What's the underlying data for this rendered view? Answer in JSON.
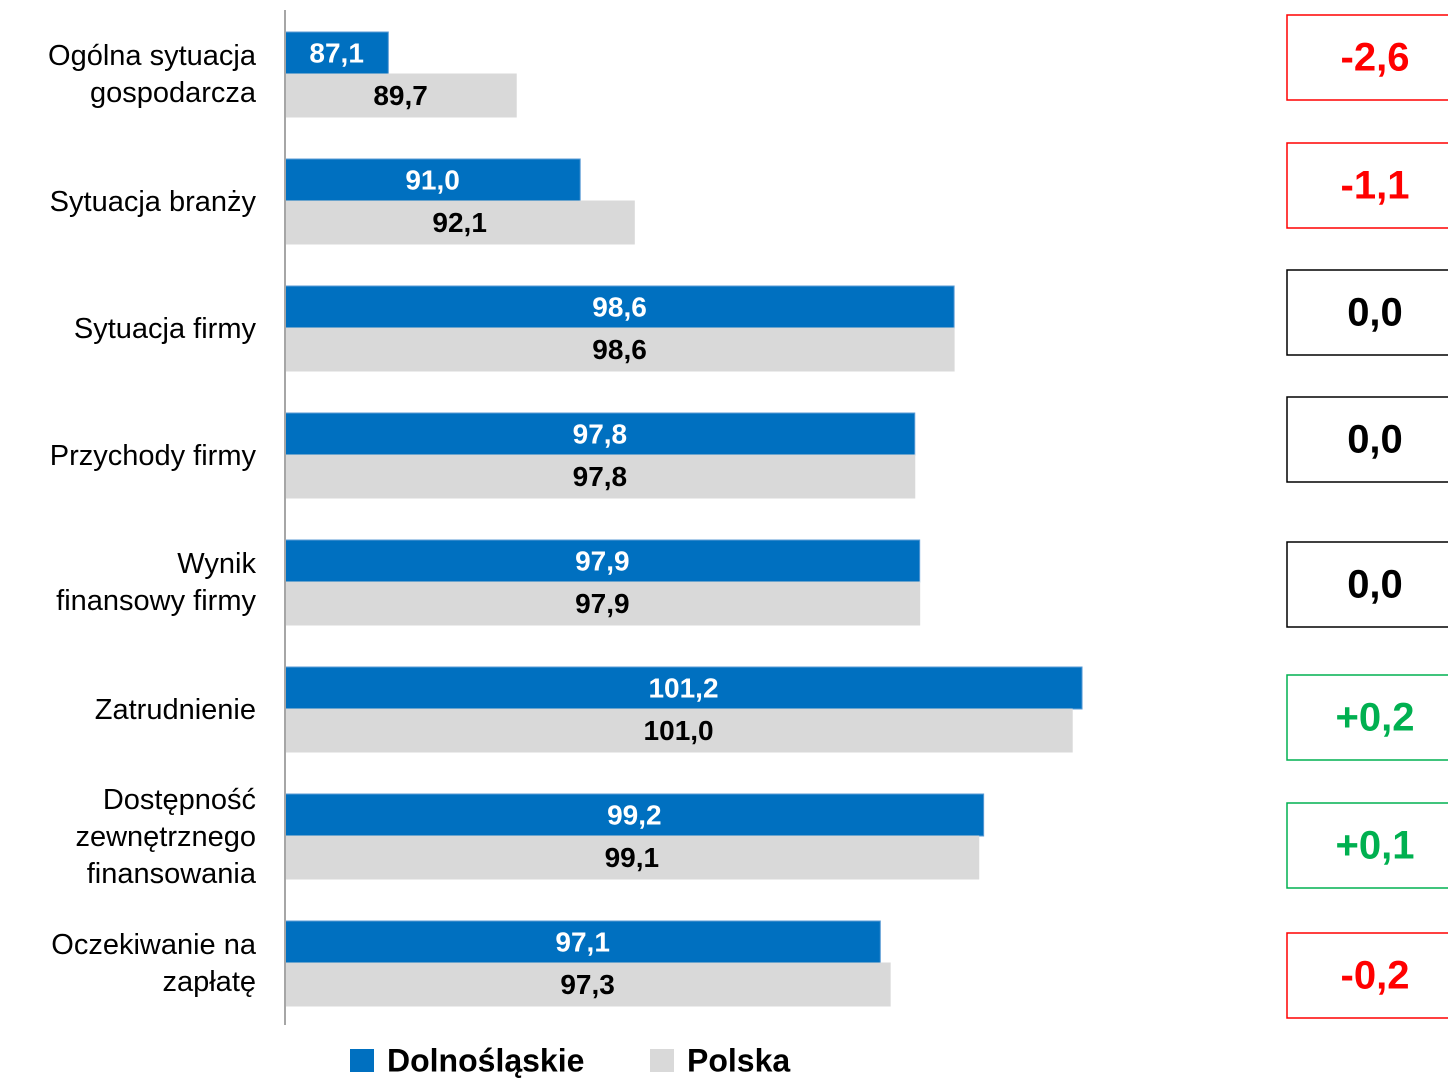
{
  "chart_data": {
    "type": "bar",
    "orientation": "horizontal",
    "categories": [
      "Ogólna sytuacja\ngospodarcza",
      "Sytuacja branży",
      "Sytuacja firmy",
      "Przychody firmy",
      "Wynik\nfinansowy firmy",
      "Zatrudnienie",
      "Dostępność\nzewnętrznego\nfinansowania",
      "Oczekiwanie na\nzapłatę"
    ],
    "series": [
      {
        "name": "Dolnośląskie",
        "color": "#0070c0",
        "label_color": "#ffffff",
        "values": [
          87.1,
          91.0,
          98.6,
          97.8,
          97.9,
          101.2,
          99.2,
          97.1
        ],
        "value_labels": [
          "87,1",
          "91,0",
          "98,6",
          "97,8",
          "97,9",
          "101,2",
          "99,2",
          "97,1"
        ]
      },
      {
        "name": "Polska",
        "color": "#d9d9d9",
        "label_color": "#000000",
        "values": [
          89.7,
          92.1,
          98.6,
          97.8,
          97.9,
          101.0,
          99.1,
          97.3
        ],
        "value_labels": [
          "89,7",
          "92,1",
          "98,6",
          "97,8",
          "97,9",
          "101,0",
          "99,1",
          "97,3"
        ]
      }
    ],
    "differences": {
      "values": [
        -2.6,
        -1.1,
        0.0,
        0.0,
        0.0,
        0.2,
        0.1,
        -0.2
      ],
      "value_labels": [
        "-2,6",
        "-1,1",
        "0,0",
        "0,0",
        "0,0",
        "+0,2",
        "+0,1",
        "-0,2"
      ],
      "colors": {
        "negative": "#ff0000",
        "zero": "#000000",
        "positive": "#00b050"
      }
    },
    "xlim": [
      85,
      105
    ],
    "legend": "bottom"
  }
}
